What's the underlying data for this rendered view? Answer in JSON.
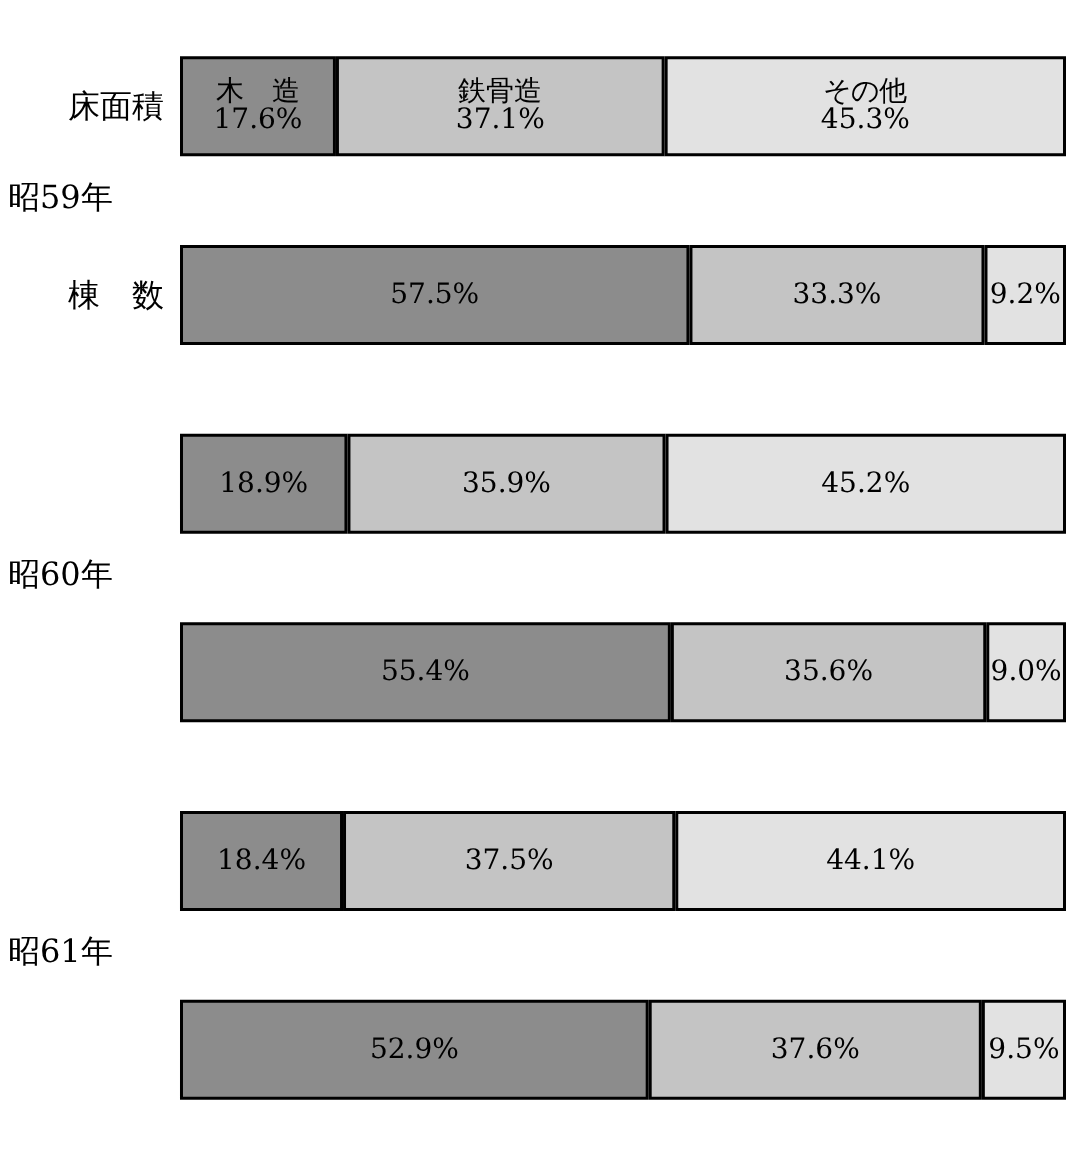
{
  "chart_data": {
    "type": "bar",
    "orientation": "horizontal",
    "stacked": true,
    "categories": [
      "床面積",
      "棟　数",
      null,
      null,
      null,
      null
    ],
    "series": [
      {
        "name": "木　造",
        "color": "#8c8c8c",
        "values": [
          17.6,
          57.5,
          18.9,
          55.4,
          18.4,
          52.9
        ],
        "value_labels": [
          "17.6%",
          "57.5%",
          "18.9%",
          "55.4%",
          "18.4%",
          "52.9%"
        ]
      },
      {
        "name": "鉄骨造",
        "color": "#c4c4c4",
        "values": [
          37.1,
          33.3,
          35.9,
          35.6,
          37.5,
          37.6
        ],
        "value_labels": [
          "37.1%",
          "33.3%",
          "35.9%",
          "35.6%",
          "37.5%",
          "37.6%"
        ]
      },
      {
        "name": "その他",
        "color": "#e2e2e2",
        "values": [
          45.3,
          9.2,
          45.2,
          9.0,
          44.1,
          9.5
        ],
        "value_labels": [
          "45.3%",
          "9.2%",
          "45.2%",
          "9.0%",
          "44.1%",
          "9.5%"
        ]
      }
    ],
    "annotations": [
      "昭59年",
      "昭60年",
      "昭61年"
    ]
  }
}
